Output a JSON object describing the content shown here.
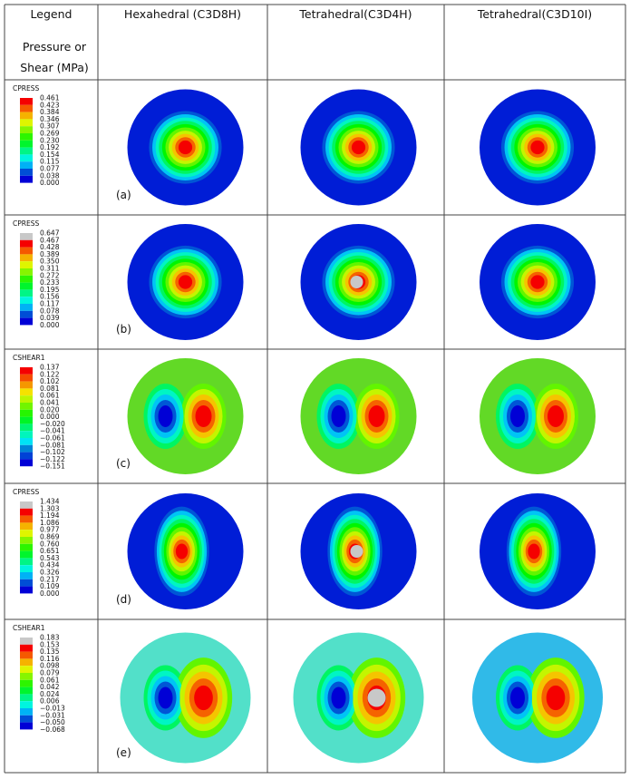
{
  "header": {
    "legend_title": "Legend",
    "legend_unit": "Pressure or Shear (MPa)",
    "columns": [
      "Hexahedral (C3D8H)",
      "Tetrahedral(C3D4H)",
      "Tetrahedral(C3D10I)"
    ]
  },
  "rows": [
    {
      "legend_name": "CPRESS",
      "legend_values": [
        "0.461",
        "0.423",
        "0.384",
        "0.346",
        "0.307",
        "0.269",
        "0.230",
        "0.192",
        "0.154",
        "0.115",
        "0.077",
        "0.038",
        "0.000"
      ],
      "label": "(a)"
    },
    {
      "legend_name": "CPRESS",
      "legend_values": [
        "0.647",
        "0.467",
        "0.428",
        "0.389",
        "0.350",
        "0.311",
        "0.272",
        "0.233",
        "0.195",
        "0.156",
        "0.117",
        "0.078",
        "0.039",
        "0.000"
      ],
      "label": "(b)"
    },
    {
      "legend_name": "CSHEAR1",
      "legend_values": [
        "0.137",
        "0.122",
        "0.102",
        "0.081",
        "0.061",
        "0.041",
        "0.020",
        "0.000",
        "−0.020",
        "−0.041",
        "−0.061",
        "−0.081",
        "−0.102",
        "−0.122",
        "−0.151"
      ],
      "label": "(c)"
    },
    {
      "legend_name": "CPRESS",
      "legend_values": [
        "1.434",
        "1.303",
        "1.194",
        "1.086",
        "0.977",
        "0.869",
        "0.760",
        "0.651",
        "0.543",
        "0.434",
        "0.326",
        "0.217",
        "0.109",
        "0.000"
      ],
      "label": "(d)"
    },
    {
      "legend_name": "CSHEAR1",
      "legend_values": [
        "0.183",
        "0.153",
        "0.135",
        "0.116",
        "0.098",
        "0.079",
        "0.061",
        "0.042",
        "0.024",
        "0.006",
        "−0.013",
        "−0.031",
        "−0.050",
        "−0.068"
      ],
      "label": "(e)"
    }
  ]
}
